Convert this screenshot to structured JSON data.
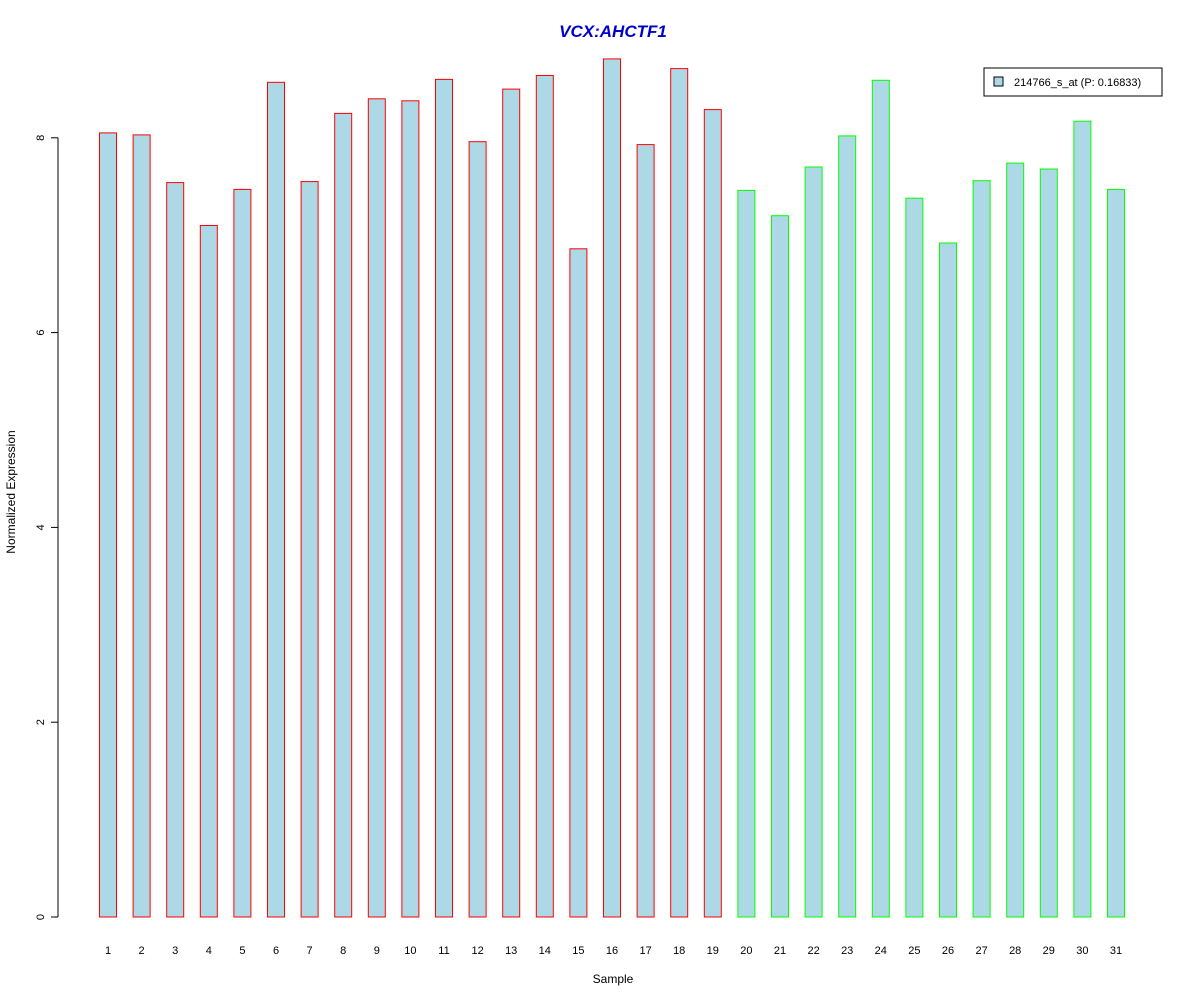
{
  "chart_data": {
    "type": "bar",
    "title": "VCX:AHCTF1",
    "xlabel": "Sample",
    "ylabel": "Normalized Expression",
    "ylim": [
      0,
      9
    ],
    "yticks": [
      0,
      2,
      4,
      6,
      8
    ],
    "grid": false,
    "legend_position": "top-right",
    "categories": [
      "1",
      "2",
      "3",
      "4",
      "5",
      "6",
      "7",
      "8",
      "9",
      "10",
      "11",
      "12",
      "13",
      "14",
      "15",
      "16",
      "17",
      "18",
      "19",
      "20",
      "21",
      "22",
      "23",
      "24",
      "25",
      "26",
      "27",
      "28",
      "29",
      "30",
      "31"
    ],
    "series": [
      {
        "name": "214766_s_at (P: 0.16833)",
        "fill": "#add8e6",
        "values": [
          8.05,
          8.03,
          7.54,
          7.1,
          7.47,
          8.57,
          7.55,
          8.25,
          8.4,
          8.38,
          8.6,
          7.96,
          8.5,
          8.64,
          6.86,
          8.81,
          7.93,
          8.71,
          8.29,
          7.46,
          7.2,
          7.7,
          8.02,
          8.59,
          7.38,
          6.92,
          7.56,
          7.74,
          7.68,
          8.17,
          7.47
        ]
      }
    ],
    "bar_border_colors": [
      "#ff0000",
      "#ff0000",
      "#ff0000",
      "#ff0000",
      "#ff0000",
      "#ff0000",
      "#ff0000",
      "#ff0000",
      "#ff0000",
      "#ff0000",
      "#ff0000",
      "#ff0000",
      "#ff0000",
      "#ff0000",
      "#ff0000",
      "#ff0000",
      "#ff0000",
      "#ff0000",
      "#ff0000",
      "#00ff00",
      "#00ff00",
      "#00ff00",
      "#00ff00",
      "#00ff00",
      "#00ff00",
      "#00ff00",
      "#00ff00",
      "#00ff00",
      "#00ff00",
      "#00ff00",
      "#00ff00"
    ],
    "title_color": "#0000cc"
  }
}
